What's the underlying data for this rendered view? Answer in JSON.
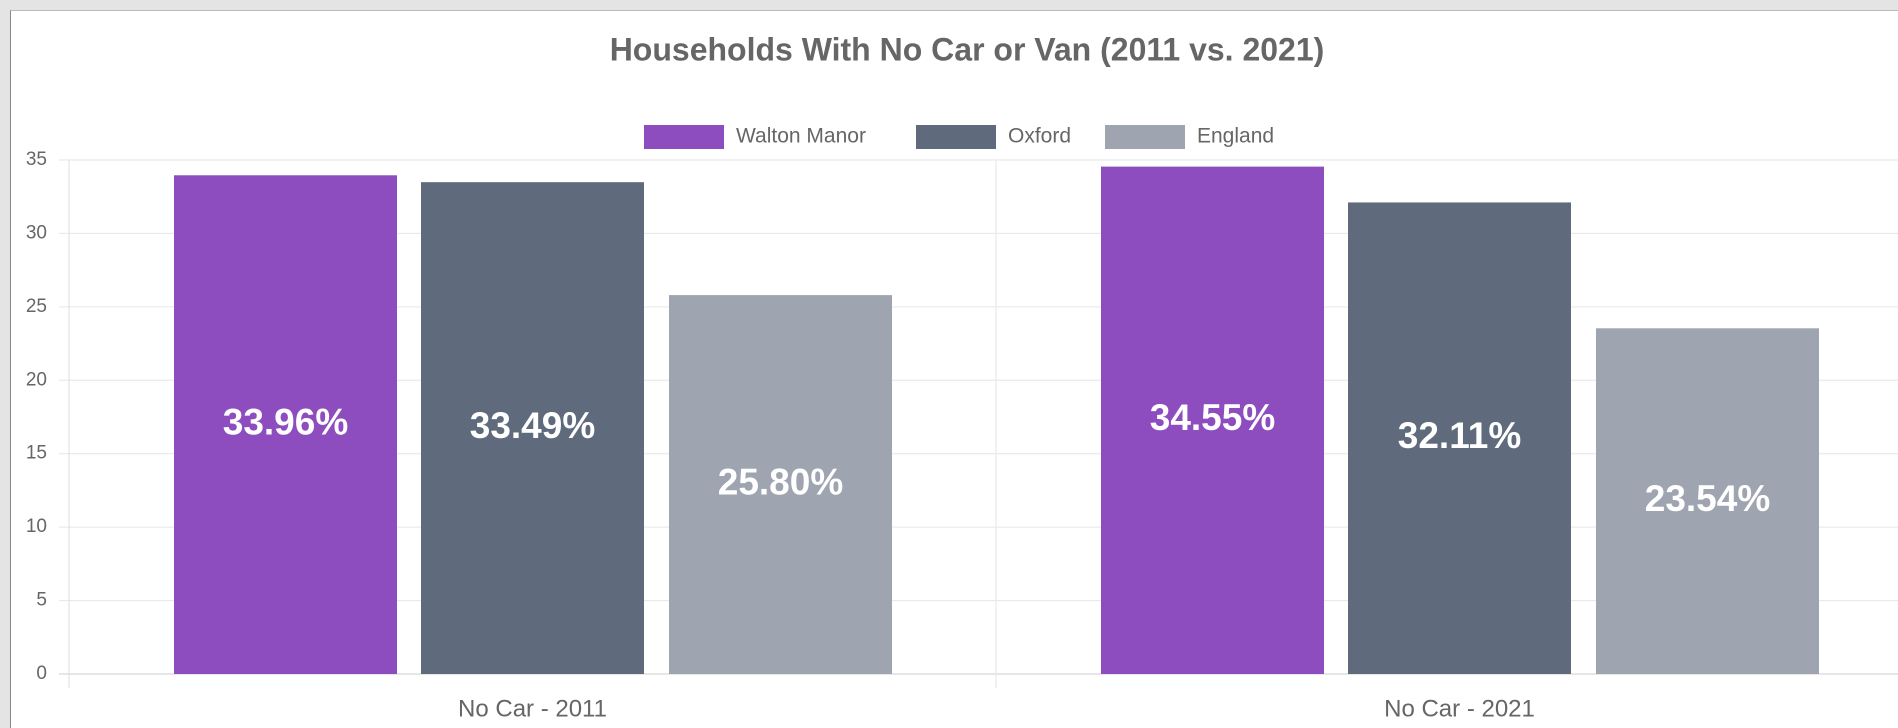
{
  "chart_data": {
    "type": "bar",
    "title": "Households With No Car or Van (2011 vs. 2021)",
    "categories": [
      "No Car - 2011",
      "No Car - 2021"
    ],
    "series": [
      {
        "name": "Walton Manor",
        "color": "#8e4dbf",
        "values": [
          33.96,
          34.55
        ],
        "value_labels": [
          "33.96%",
          "34.55%"
        ]
      },
      {
        "name": "Oxford",
        "color": "#5f6b7d",
        "values": [
          33.49,
          32.11
        ],
        "value_labels": [
          "33.49%",
          "32.11%"
        ]
      },
      {
        "name": "England",
        "color": "#9ea4b0",
        "values": [
          25.8,
          23.54
        ],
        "value_labels": [
          "25.80%",
          "23.54%"
        ]
      }
    ],
    "ylim": [
      0,
      35
    ],
    "yticks": [
      0,
      5,
      10,
      15,
      20,
      25,
      30,
      35
    ],
    "grid": true,
    "legend": "top"
  }
}
